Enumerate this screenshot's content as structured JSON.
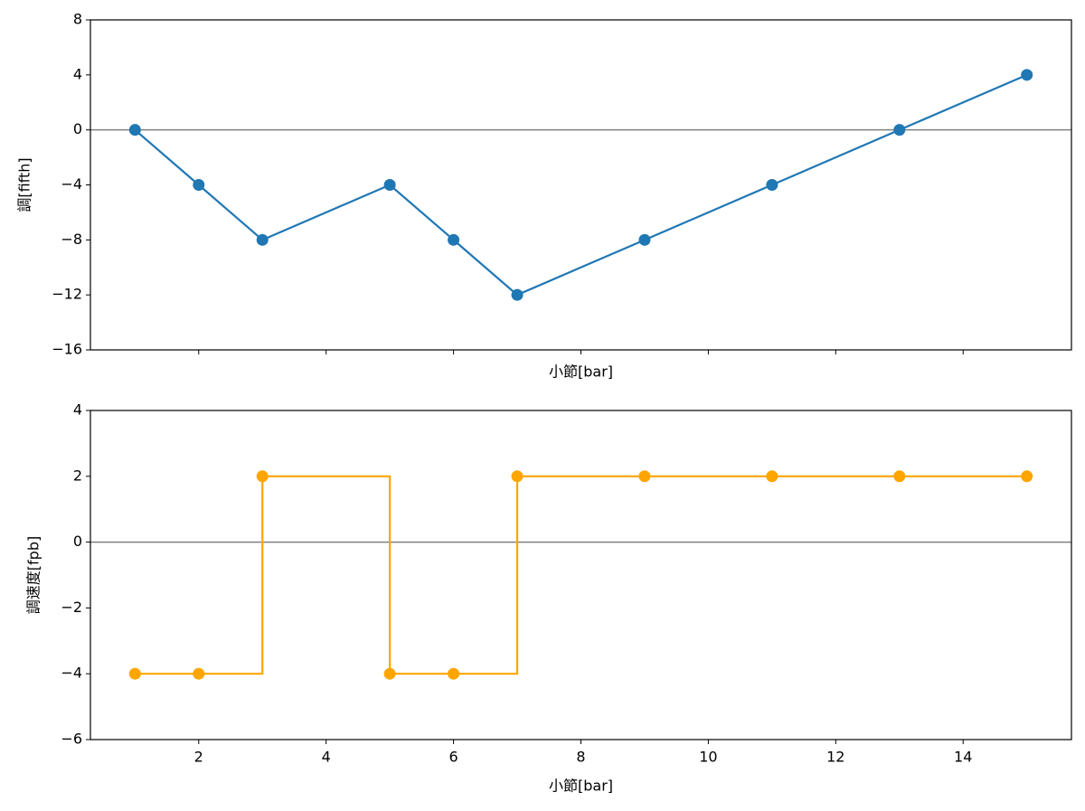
{
  "chart_data": [
    {
      "type": "line",
      "xlabel": "小節[bar]",
      "ylabel": "調[fifth]",
      "color": "#1f77b4",
      "x": [
        1,
        2,
        3,
        5,
        6,
        7,
        9,
        11,
        13,
        15
      ],
      "values": [
        0,
        -4,
        -8,
        -4,
        -8,
        -12,
        -8,
        -4,
        0,
        4
      ],
      "xlim": [
        0.3,
        15.7
      ],
      "xticks": [
        2,
        4,
        6,
        8,
        10,
        12,
        14
      ],
      "xtick_labels": false,
      "ylim": [
        -16,
        8
      ],
      "yticks": [
        {
          "value": -16,
          "label": "−16"
        },
        {
          "value": -12,
          "label": "−12"
        },
        {
          "value": -8,
          "label": "−8"
        },
        {
          "value": -4,
          "label": "−4"
        },
        0,
        4,
        8
      ],
      "hline": 0,
      "hline_color": "#808080"
    },
    {
      "type": "step",
      "xlabel": "小節[bar]",
      "ylabel": "調速度[fpb]",
      "color": "#ffa500",
      "x": [
        1,
        2,
        3,
        5,
        6,
        7,
        9,
        11,
        13,
        15
      ],
      "values": [
        -4,
        -4,
        2,
        -4,
        -4,
        2,
        2,
        2,
        2,
        2
      ],
      "xlim": [
        0.3,
        15.7
      ],
      "xticks": [
        2,
        4,
        6,
        8,
        10,
        12,
        14
      ],
      "xtick_labels": true,
      "ylim": [
        -6,
        4
      ],
      "yticks": [
        {
          "value": -6,
          "label": "−6"
        },
        {
          "value": -4,
          "label": "−4"
        },
        {
          "value": -2,
          "label": "−2"
        },
        0,
        2,
        4
      ],
      "hline": 0,
      "hline_color": "#808080"
    }
  ]
}
